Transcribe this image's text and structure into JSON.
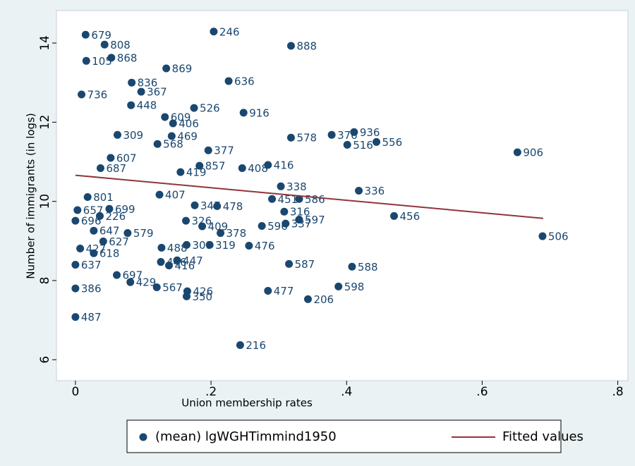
{
  "chart_data": {
    "type": "scatter",
    "x_label": "Union membership rates",
    "y_label": "Number of immigrants (in logs)",
    "xlim": [
      -0.028,
      0.815
    ],
    "ylim": [
      5.47,
      14.82
    ],
    "xticks": [
      0,
      {
        "value": 0.2,
        "label": ".2"
      },
      {
        "value": 0.4,
        "label": ".4"
      },
      {
        "value": 0.6,
        "label": ".6"
      },
      {
        "value": 0.8,
        "label": ".8"
      }
    ],
    "yticks": [
      6,
      8,
      10,
      12,
      14
    ],
    "grid": false,
    "series": [
      {
        "name": "(mean) lgWGHTimmind1950",
        "color": "#1a476f",
        "kind": "points",
        "x": [
          0.015,
          0.043,
          0.016,
          0.053,
          0.204,
          0.318,
          0.134,
          0.083,
          0.226,
          0.097,
          0.175,
          0.248,
          0.132,
          0.144,
          0.142,
          0.318,
          0.378,
          0.411,
          0.401,
          0.444,
          0.652,
          0.062,
          0.121,
          0.196,
          0.183,
          0.246,
          0.284,
          0.155,
          0.303,
          0.418,
          0.33,
          0.29,
          0.209,
          0.308,
          0.47,
          0.33,
          0.31,
          0.275,
          0.689,
          0.214,
          0.187,
          0.198,
          0.256,
          0.315,
          0.408,
          0.284,
          0.388,
          0.343,
          0.243,
          0.165,
          0.164,
          0.12,
          0.081,
          0.061,
          0.126,
          0.138,
          0,
          0,
          0,
          0.077,
          0.05,
          0.027,
          0.041,
          0.027,
          0.037,
          0.052,
          0.082,
          0.036,
          0.003,
          0.176,
          0.124,
          0.127,
          0.164,
          0.163,
          0.15,
          0.018,
          0.007,
          0,
          0.009
        ],
        "values": [
          14.21,
          13.96,
          13.55,
          13.63,
          14.29,
          13.93,
          13.36,
          13.0,
          13.04,
          12.77,
          12.36,
          12.24,
          12.13,
          11.97,
          11.65,
          11.61,
          11.68,
          11.75,
          11.43,
          11.5,
          11.24,
          11.68,
          11.45,
          11.29,
          10.9,
          10.84,
          10.92,
          10.74,
          10.38,
          10.27,
          10.06,
          10.06,
          9.88,
          9.74,
          9.63,
          9.54,
          9.44,
          9.38,
          9.12,
          9.2,
          9.37,
          8.9,
          8.88,
          8.42,
          8.35,
          7.74,
          7.85,
          7.53,
          6.37,
          7.73,
          7.6,
          7.83,
          7.96,
          8.14,
          8.47,
          8.38,
          7.08,
          8.4,
          7.8,
          9.2,
          9.81,
          8.69,
          8.99,
          9.26,
          10.84,
          11.1,
          12.43,
          9.63,
          9.78,
          9.9,
          10.17,
          8.83,
          8.9,
          9.51,
          8.51,
          10.11,
          8.81,
          9.51,
          12.7
        ],
        "point_labels": [
          "679",
          "808",
          "105",
          "868",
          "246",
          "888",
          "869",
          "836",
          "636",
          "367",
          "526",
          "916",
          "609",
          "406",
          "469",
          "578",
          "376",
          "936",
          "516",
          "556",
          "906",
          "309",
          "568",
          "377",
          "857",
          "408",
          "416",
          "419",
          "338",
          "336",
          "586",
          "451",
          "478",
          "316",
          "456",
          "597",
          "337",
          "596",
          "506",
          "378",
          "409",
          "319",
          "476",
          "587",
          "588",
          "477",
          "598",
          "206",
          "216",
          "426",
          "350",
          "567",
          "429",
          "697",
          "446",
          "416",
          "487",
          "637",
          "386",
          "579",
          "699",
          "618",
          "627",
          "647",
          "687",
          "607",
          "448",
          "226",
          "657",
          "347",
          "407",
          "488",
          "308",
          "326",
          "447",
          "801",
          "427",
          "696",
          "736"
        ]
      },
      {
        "name": "Fitted values",
        "color": "#90353b",
        "kind": "line",
        "x": [
          0,
          0.69
        ],
        "values": [
          10.66,
          9.57
        ]
      }
    ],
    "legend": "bottom"
  }
}
